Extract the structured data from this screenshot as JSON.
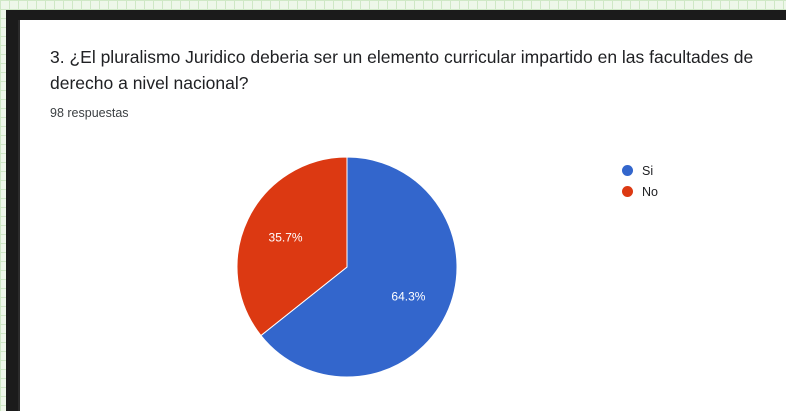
{
  "question": {
    "title": "3. ¿El pluralismo Juridico deberia ser un elemento curricular impartido en las facultades de derecho a nivel nacional?",
    "response_count": "98 respuestas"
  },
  "colors": {
    "si": "#3366cc",
    "no": "#dc3912"
  },
  "chart_data": {
    "type": "pie",
    "title": "",
    "slices": [
      {
        "name": "Si",
        "value": 64.3,
        "label": "64.3%",
        "color": "#3366cc"
      },
      {
        "name": "No",
        "value": 35.7,
        "label": "35.7%",
        "color": "#dc3912"
      }
    ],
    "legend": [
      "Si",
      "No"
    ],
    "legend_position": "right",
    "start_angle_deg": 90,
    "direction": "clockwise"
  }
}
